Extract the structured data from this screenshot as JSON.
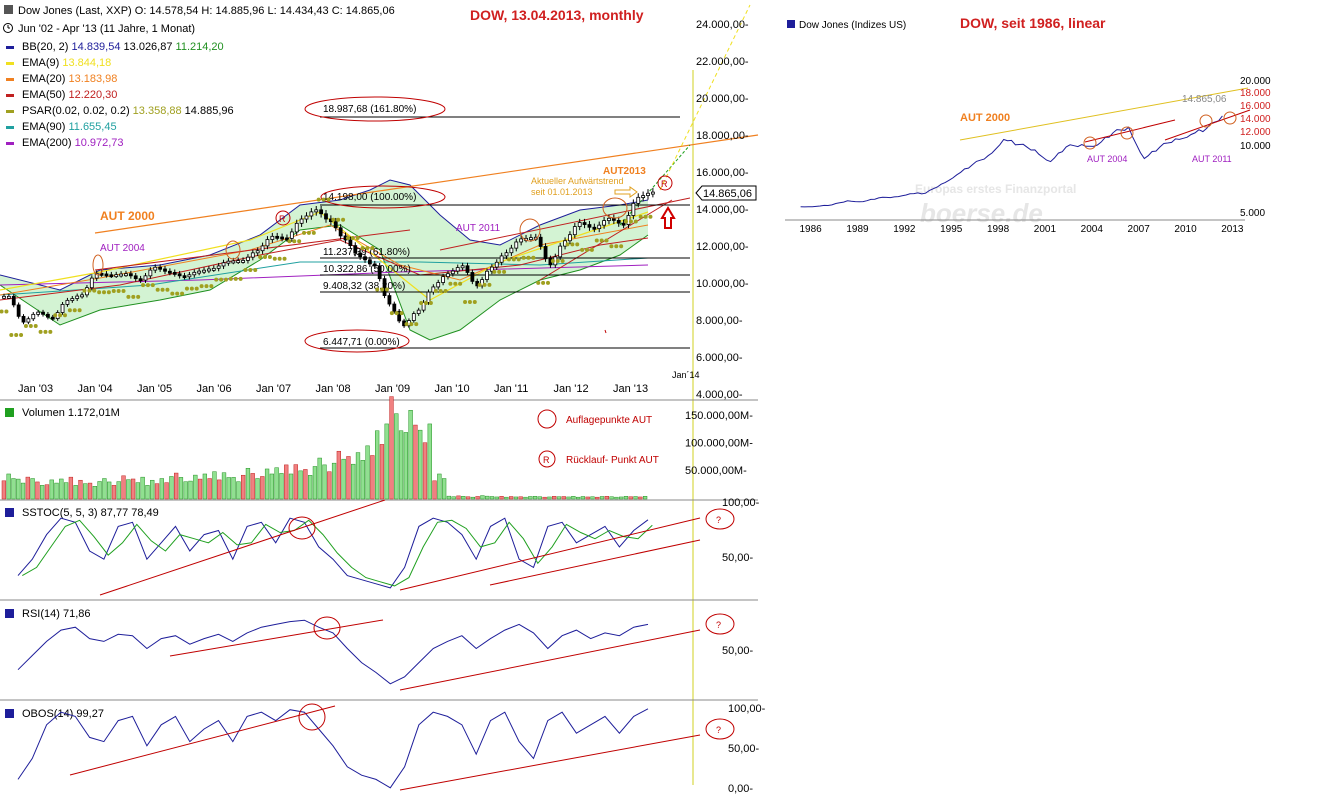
{
  "main_chart": {
    "header": {
      "line1": "Dow Jones (Last, XXP)  O: 14.578,54  H: 14.885,96  L: 14.434,43  C: 14.865,06",
      "line2": "Jun '02 - Apr '13 (11 Jahre, 1 Monat)"
    },
    "annotation_title": "DOW, 13.04.2013,  monthly",
    "legend": [
      {
        "label": "BB(20, 2)",
        "values": [
          "14.839,54",
          "13.026,87",
          "11.214,20"
        ],
        "color": "#1e1e9a"
      },
      {
        "label": "EMA(9)",
        "values": [
          "13.844,18"
        ],
        "color": "#f0e020"
      },
      {
        "label": "EMA(20)",
        "values": [
          "13.183,98"
        ],
        "color": "#f08020"
      },
      {
        "label": "EMA(50)",
        "values": [
          "12.220,30"
        ],
        "color": "#c02020"
      },
      {
        "label": "PSAR(0.02, 0.02, 0.2)",
        "values": [
          "13.358,88",
          "14.885,96"
        ],
        "color": "#a0a020"
      },
      {
        "label": "EMA(90)",
        "values": [
          "11.655,45"
        ],
        "color": "#20a0a0"
      },
      {
        "label": "EMA(200)",
        "values": [
          "10.972,73"
        ],
        "color": "#a020c0"
      }
    ],
    "y_ticks": [
      "24.000,00-",
      "22.000,00-",
      "20.000,00-",
      "18.000,00-",
      "16.000,00-",
      "14.000,00-",
      "12.000,00-",
      "10.000,00-",
      "8.000,00-",
      "6.000,00-",
      "4.000,00-"
    ],
    "x_ticks": [
      "Jan '03",
      "Jan '04",
      "Jan '05",
      "Jan '06",
      "Jan '07",
      "Jan '08",
      "Jan '09",
      "Jan '10",
      "Jan '11",
      "Jan '12",
      "Jan '13"
    ],
    "x_extra_tick": "Jan´14",
    "last_price_label": "14.865,06",
    "fib_levels": [
      "18.987,68 (161.80%)",
      "14.198,00 (100.00%)",
      "11.237,39 (61.80%)",
      "10.322,86 (50.00%)",
      "9.408,32 (38.20%)",
      "6.447,71 (0.00%)"
    ],
    "annotations": {
      "aut2000": "AUT 2000",
      "aut2004": "AUT 2004",
      "aut2011": "AUT 2011",
      "aut2013": "AUT2013",
      "trend_line1": "Aktueller Aufwärtstrend",
      "trend_line2": "seit 01.01.2013",
      "r_marker": "R"
    }
  },
  "volume_panel": {
    "label": "Volumen  1.172,01M",
    "y_ticks": [
      "150.000,00M-",
      "100.000,00M-",
      "50.000,00M-"
    ],
    "legend_circle": "Auflagepunkte AUT",
    "legend_r": "Rücklauf- Punkt AUT",
    "r_symbol": "R"
  },
  "sstoc_panel": {
    "label": "SSTOC(5, 5, 3)  87,77  78,49",
    "y_ticks": [
      "100,00-",
      "50,00-"
    ],
    "question": "?"
  },
  "rsi_panel": {
    "label": "RSI(14)  71,86",
    "y_ticks": [
      "50,00-"
    ],
    "question": "?"
  },
  "obos_panel": {
    "label": "OBOS(14)  99,27",
    "y_ticks": [
      "100,00-",
      "50,00-",
      "0,00-"
    ],
    "question": "?"
  },
  "inset_chart": {
    "legend": "Dow Jones (Indizes US)",
    "title": "DOW,  seit  1986,  linear",
    "watermark1": "Europas erstes Finanzportal",
    "watermark2": "boerse.de",
    "y_ticks": [
      "20.000",
      "18.000",
      "16.000",
      "14.000",
      "12.000",
      "10.000",
      "5.000"
    ],
    "x_ticks": [
      "1986",
      "1989",
      "1992",
      "1995",
      "1998",
      "2001",
      "2004",
      "2007",
      "2010",
      "2013"
    ],
    "last_value": "14.865,06",
    "annotations": {
      "aut2000": "AUT 2000",
      "aut2004": "AUT 2004",
      "aut2011": "AUT 2011"
    }
  },
  "chart_data": [
    {
      "type": "line",
      "title": "Dow Jones monthly (candles) Jun 2002 - Apr 2013",
      "x": [
        "2002-06",
        "2002-09",
        "2002-12",
        "2003-03",
        "2003-06",
        "2003-09",
        "2003-12",
        "2004-03",
        "2004-06",
        "2004-09",
        "2004-12",
        "2005-03",
        "2005-06",
        "2005-09",
        "2005-12",
        "2006-03",
        "2006-06",
        "2006-09",
        "2006-12",
        "2007-03",
        "2007-06",
        "2007-09",
        "2007-12",
        "2008-03",
        "2008-06",
        "2008-09",
        "2008-12",
        "2009-03",
        "2009-06",
        "2009-09",
        "2009-12",
        "2010-03",
        "2010-06",
        "2010-09",
        "2010-12",
        "2011-03",
        "2011-06",
        "2011-09",
        "2011-12",
        "2012-03",
        "2012-06",
        "2012-09",
        "2012-12",
        "2013-03",
        "2013-04"
      ],
      "series": [
        {
          "name": "Dow Jones",
          "values": [
            9200,
            7800,
            8340,
            7990,
            8980,
            9280,
            10450,
            10350,
            10430,
            10080,
            10780,
            10500,
            10270,
            10570,
            10720,
            11110,
            11150,
            11680,
            12460,
            12350,
            13400,
            13900,
            13260,
            12260,
            11350,
            10850,
            8780,
            7600,
            8450,
            9710,
            10430,
            10860,
            9770,
            10790,
            11570,
            12320,
            12410,
            10910,
            12220,
            13210,
            12880,
            13440,
            13100,
            14580,
            14865
          ]
        }
      ],
      "ylim": [
        4000,
        24000
      ]
    },
    {
      "type": "bar",
      "title": "Volumen",
      "series": [
        {
          "name": "Volumen",
          "values": [
            40,
            35,
            30,
            28,
            32,
            30,
            28,
            30,
            34,
            32,
            30,
            36,
            38,
            35,
            40,
            42,
            38,
            45,
            44,
            50,
            55,
            52,
            60,
            70,
            68,
            85,
            120,
            150,
            130,
            110,
            40,
            5,
            4,
            5,
            4,
            4,
            4,
            4,
            4,
            4,
            4,
            4,
            4,
            4,
            4
          ]
        }
      ],
      "ylim": [
        0,
        160
      ]
    },
    {
      "type": "line",
      "title": "SSTOC(5, 5, 3)",
      "series": [
        {
          "name": "SSTOC",
          "values": [
            20,
            40,
            70,
            90,
            85,
            50,
            40,
            80,
            85,
            40,
            60,
            80,
            50,
            70,
            75,
            40,
            80,
            85,
            60,
            90,
            85,
            55,
            40,
            20,
            15,
            10,
            5,
            30,
            80,
            90,
            85,
            70,
            40,
            80,
            90,
            40,
            30,
            80,
            85,
            60,
            70,
            80,
            55,
            75,
            88
          ]
        }
      ],
      "ylim": [
        0,
        100
      ]
    },
    {
      "type": "line",
      "title": "RSI(14)",
      "series": [
        {
          "name": "RSI",
          "values": [
            40,
            50,
            60,
            68,
            70,
            62,
            60,
            65,
            64,
            55,
            62,
            64,
            58,
            62,
            65,
            60,
            66,
            70,
            72,
            74,
            75,
            70,
            66,
            55,
            45,
            38,
            30,
            35,
            45,
            55,
            60,
            64,
            55,
            62,
            68,
            72,
            66,
            55,
            64,
            68,
            62,
            66,
            64,
            70,
            72
          ]
        }
      ],
      "ylim": [
        20,
        85
      ]
    },
    {
      "type": "line",
      "title": "OBOS(14)",
      "series": [
        {
          "name": "OBOS",
          "values": [
            15,
            40,
            80,
            95,
            90,
            65,
            60,
            85,
            90,
            55,
            80,
            90,
            60,
            75,
            85,
            60,
            90,
            95,
            85,
            98,
            95,
            75,
            55,
            30,
            20,
            15,
            5,
            30,
            80,
            95,
            90,
            80,
            45,
            85,
            95,
            60,
            40,
            85,
            95,
            70,
            80,
            90,
            70,
            90,
            99
          ]
        }
      ],
      "ylim": [
        0,
        100
      ]
    },
    {
      "type": "line",
      "title": "Dow Jones (Indizes US)",
      "x": [
        1986,
        1987,
        1988,
        1989,
        1990,
        1991,
        1992,
        1993,
        1994,
        1995,
        1996,
        1997,
        1998,
        1999,
        2000,
        2001,
        2002,
        2003,
        2004,
        2005,
        2006,
        2007,
        2008,
        2009,
        2010,
        2011,
        2012,
        2013
      ],
      "series": [
        {
          "name": "Dow Jones (Indizes US)",
          "values": [
            1900,
            1940,
            2160,
            2750,
            2630,
            3160,
            3300,
            3750,
            3830,
            5110,
            6450,
            7900,
            9180,
            11500,
            10790,
            10020,
            8340,
            10450,
            10780,
            10720,
            12460,
            13260,
            8780,
            10430,
            11580,
            12220,
            13100,
            14865
          ]
        }
      ],
      "ylim": [
        0,
        20000
      ]
    }
  ]
}
